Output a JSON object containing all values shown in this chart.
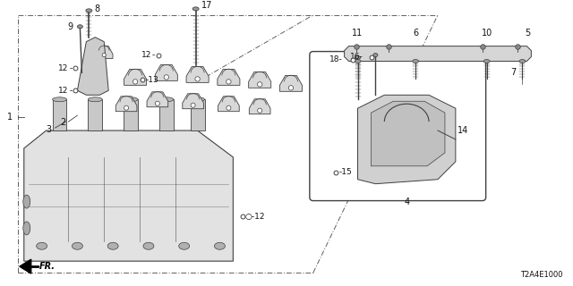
{
  "bg_color": "#ffffff",
  "diagram_code": "T2A4E1000",
  "line_color": "#404040",
  "text_color": "#111111",
  "image_b64": ""
}
